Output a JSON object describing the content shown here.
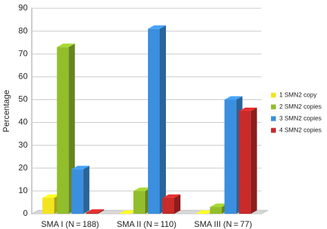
{
  "chart_data": {
    "type": "bar3d",
    "y_label": "Percentage",
    "categories": [
      "SMA I (N = 188)",
      "SMA II (N = 110)",
      "SMA III (N = 77)"
    ],
    "series": [
      {
        "name": "1 SMN2 copy",
        "color": "#f2e41e",
        "values": [
          7,
          0,
          0
        ]
      },
      {
        "name": "2 SMN2 copies",
        "color": "#92be2c",
        "values": [
          73,
          10,
          3
        ]
      },
      {
        "name": "3 SMN2 copies",
        "color": "#3b8fde",
        "values": [
          19.5,
          81,
          50
        ]
      },
      {
        "name": "4 SMN2 copies",
        "color": "#c92a2a",
        "values": [
          0.5,
          7,
          45
        ]
      }
    ],
    "ylim": [
      0,
      90
    ],
    "yticks": [
      0,
      10,
      20,
      30,
      40,
      50,
      60,
      70,
      80,
      90
    ],
    "grid": true,
    "legend": "right"
  }
}
